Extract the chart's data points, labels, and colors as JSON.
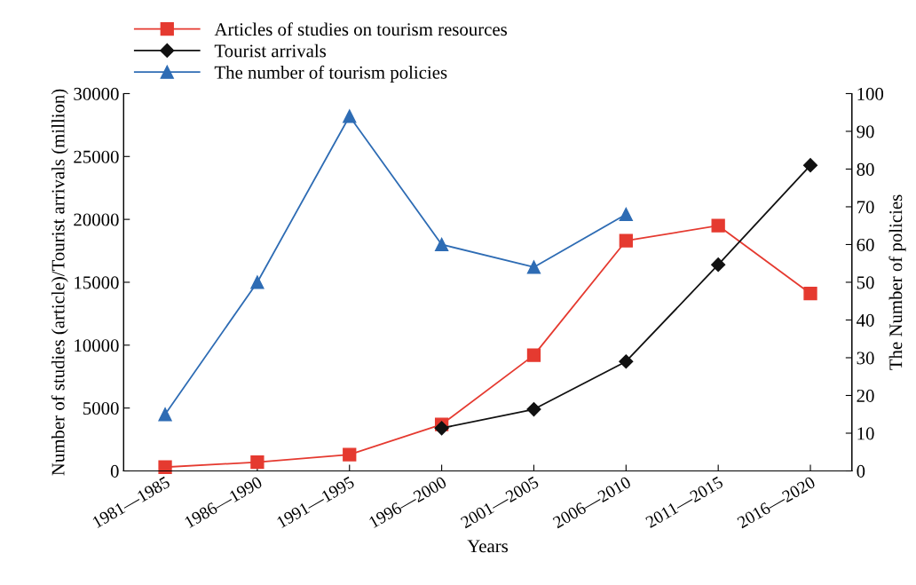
{
  "chart_data": {
    "type": "line",
    "xlabel": "Years",
    "ylabel": "Number of studies (article)/Tourist arrivals (million)",
    "y2label": "The Number of policies",
    "categories": [
      "1981—1985",
      "1986—1990",
      "1991—1995",
      "1996—2000",
      "2001—2005",
      "2006—2010",
      "2011—2015",
      "2016—2020"
    ],
    "series": [
      {
        "name": "Articles of studies on tourism resources",
        "color": "#e53a30",
        "marker": "square",
        "values": [
          300,
          700,
          1300,
          3700,
          9200,
          18300,
          19500,
          14100
        ]
      },
      {
        "name": "Tourist arrivals",
        "color": "#111111",
        "marker": "diamond",
        "values": [
          null,
          null,
          null,
          3400,
          4900,
          8700,
          16400,
          24300
        ]
      },
      {
        "name": "The number of tourism policies",
        "color": "#2e6cb4",
        "marker": "triangle",
        "axis": "y2",
        "values": [
          15,
          50,
          94,
          60,
          54,
          68,
          null,
          null
        ]
      }
    ],
    "ylim": [
      0,
      30000
    ],
    "yticks": [
      0,
      5000,
      10000,
      15000,
      20000,
      25000,
      30000
    ],
    "y2lim": [
      0,
      100
    ],
    "y2ticks": [
      0,
      10,
      20,
      30,
      40,
      50,
      60,
      70,
      80,
      90,
      100
    ],
    "grid": false,
    "legend": "top left",
    "line_style": "solid"
  }
}
